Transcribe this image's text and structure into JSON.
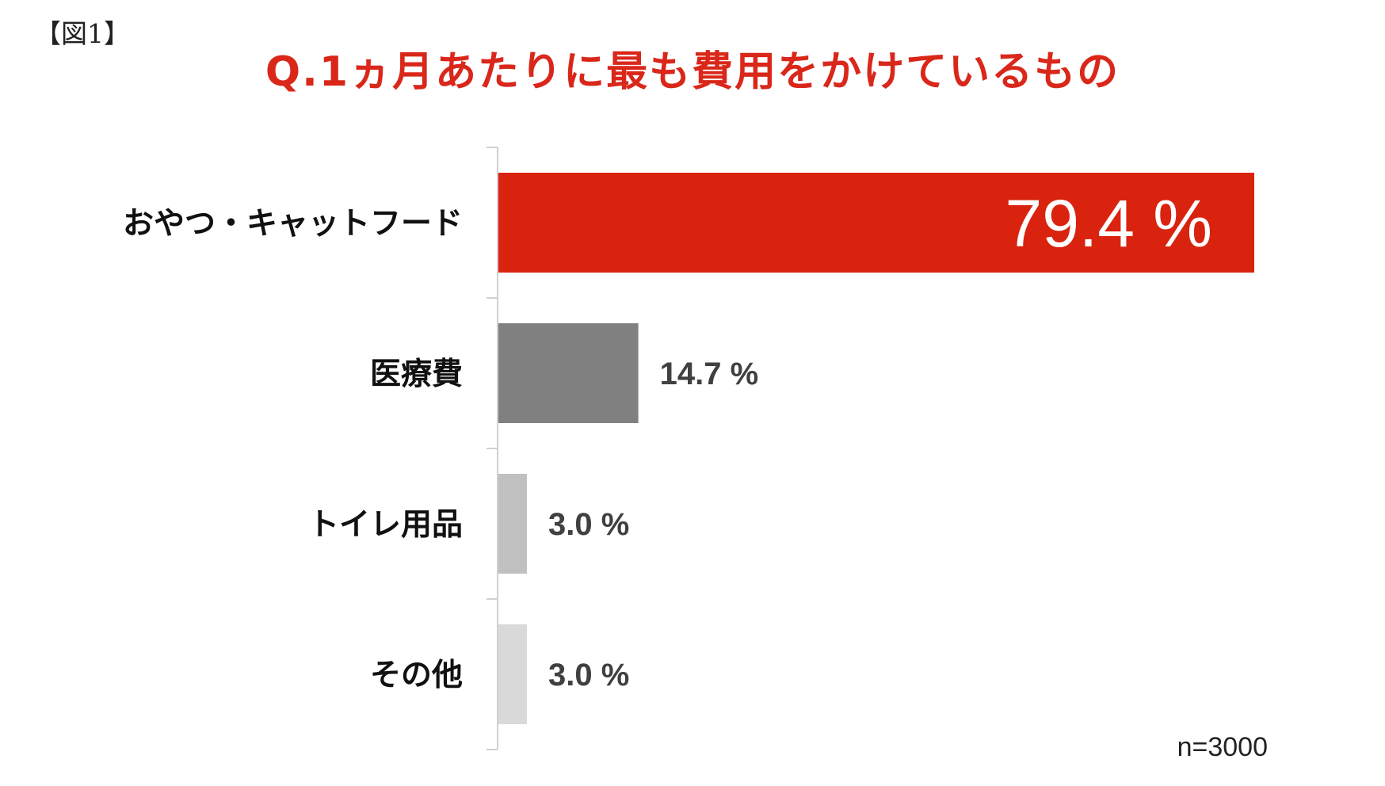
{
  "figure_label": "【図1】",
  "note": "n=3000",
  "chart_data": {
    "type": "bar",
    "orientation": "horizontal",
    "title": "Q.1ヵ月あたりに最も費用をかけているもの",
    "categories": [
      "おやつ・キャットフード",
      "医療費",
      "トイレ用品",
      "その他"
    ],
    "values": [
      79.4,
      14.7,
      3.0,
      3.0
    ],
    "value_labels": [
      "79.4 %",
      "14.7 %",
      "3.0 %",
      "3.0 %"
    ],
    "colors": [
      "#d9230f",
      "#808080",
      "#c0c0c0",
      "#d9d9d9"
    ],
    "unit": "%",
    "xlabel": "",
    "ylabel": "",
    "xlim": [
      0,
      100
    ],
    "grid": false,
    "legend": "none"
  }
}
